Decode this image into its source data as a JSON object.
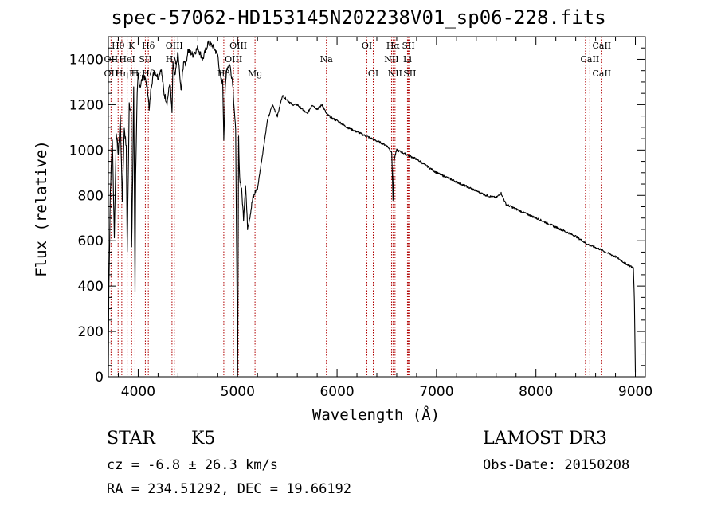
{
  "chart_data": {
    "type": "line",
    "title": "spec-57062-HD153145N202238V01_sp06-228.fits",
    "xlabel": "Wavelength (Å)",
    "ylabel": "Flux (relative)",
    "xlim": [
      3700,
      9100
    ],
    "ylim": [
      0,
      1500
    ],
    "xticks": [
      4000,
      5000,
      6000,
      7000,
      8000,
      9000
    ],
    "yticks": [
      0,
      200,
      400,
      600,
      800,
      1000,
      1200,
      1400
    ],
    "grid": false,
    "series": [
      {
        "name": "flux",
        "x": [
          3700,
          3705,
          3720,
          3740,
          3760,
          3780,
          3800,
          3820,
          3840,
          3860,
          3880,
          3890,
          3900,
          3910,
          3930,
          3934,
          3945,
          3955,
          3968,
          3975,
          3990,
          4000,
          4020,
          4050,
          4080,
          4102,
          4110,
          4130,
          4160,
          4200,
          4230,
          4260,
          4290,
          4320,
          4340,
          4350,
          4370,
          4400,
          4430,
          4460,
          4480,
          4500,
          4550,
          4600,
          4650,
          4700,
          4750,
          4800,
          4830,
          4850,
          4861,
          4875,
          4890,
          4920,
          4950,
          4980,
          5000,
          5010,
          5020,
          5040,
          5060,
          5080,
          5100,
          5120,
          5150,
          5180,
          5200,
          5230,
          5260,
          5300,
          5350,
          5400,
          5450,
          5500,
          5550,
          5600,
          5650,
          5700,
          5750,
          5800,
          5850,
          5893,
          5950,
          6000,
          6100,
          6200,
          6300,
          6400,
          6500,
          6550,
          6563,
          6575,
          6600,
          6700,
          6800,
          6900,
          7000,
          7100,
          7200,
          7300,
          7400,
          7500,
          7600,
          7650,
          7700,
          7800,
          7900,
          8000,
          8100,
          8200,
          8300,
          8400,
          8498,
          8542,
          8600,
          8662,
          8700,
          8800,
          8900,
          8980,
          8990,
          9000
        ],
        "values": [
          5,
          380,
          820,
          1050,
          620,
          1080,
          980,
          1150,
          780,
          1100,
          1010,
          550,
          880,
          1210,
          1160,
          560,
          880,
          1280,
          380,
          900,
          1240,
          1330,
          1280,
          1330,
          1300,
          1240,
          1170,
          1280,
          1350,
          1320,
          1360,
          1250,
          1210,
          1300,
          1160,
          1380,
          1320,
          1430,
          1260,
          1400,
          1380,
          1440,
          1420,
          1450,
          1400,
          1470,
          1460,
          1420,
          1310,
          1300,
          1050,
          1260,
          1360,
          1380,
          1300,
          1080,
          20,
          1050,
          880,
          820,
          700,
          850,
          660,
          700,
          780,
          820,
          830,
          920,
          1010,
          1130,
          1200,
          1150,
          1240,
          1220,
          1200,
          1200,
          1180,
          1160,
          1200,
          1180,
          1200,
          1160,
          1140,
          1130,
          1100,
          1080,
          1060,
          1040,
          1020,
          990,
          780,
          960,
          1000,
          980,
          960,
          930,
          900,
          880,
          860,
          840,
          820,
          800,
          790,
          810,
          760,
          740,
          720,
          700,
          680,
          660,
          640,
          620,
          590,
          580,
          570,
          560,
          550,
          530,
          500,
          480,
          330,
          20
        ]
      }
    ],
    "line_labels": [
      {
        "text": "Hθ",
        "x": 3798,
        "row": 1
      },
      {
        "text": "K",
        "x": 3934,
        "row": 1
      },
      {
        "text": "Hδ",
        "x": 4102,
        "row": 1
      },
      {
        "text": "OIII",
        "x": 4363,
        "row": 1
      },
      {
        "text": "OIII",
        "x": 5007,
        "row": 1
      },
      {
        "text": "OI",
        "x": 6300,
        "row": 1
      },
      {
        "text": "Hα",
        "x": 6563,
        "row": 1
      },
      {
        "text": "SII",
        "x": 6717,
        "row": 1
      },
      {
        "text": "CaII",
        "x": 8662,
        "row": 1
      },
      {
        "text": "OII",
        "x": 3727,
        "row": 2
      },
      {
        "text": "HeI",
        "x": 3889,
        "row": 2
      },
      {
        "text": "SII",
        "x": 4072,
        "row": 2
      },
      {
        "text": "Hγ",
        "x": 4340,
        "row": 2
      },
      {
        "text": "OIII",
        "x": 4959,
        "row": 2
      },
      {
        "text": "Na",
        "x": 5893,
        "row": 2
      },
      {
        "text": "NII",
        "x": 6548,
        "row": 2
      },
      {
        "text": "Li",
        "x": 6708,
        "row": 2
      },
      {
        "text": "CaII",
        "x": 8542,
        "row": 2
      },
      {
        "text": "OII",
        "x": 3727,
        "row": 3
      },
      {
        "text": "Hη",
        "x": 3835,
        "row": 3
      },
      {
        "text": "H",
        "x": 3968,
        "row": 3
      },
      {
        "text": "Hβ",
        "x": 4861,
        "row": 3
      },
      {
        "text": "Mg",
        "x": 5175,
        "row": 3
      },
      {
        "text": "OI",
        "x": 6364,
        "row": 3
      },
      {
        "text": "NII",
        "x": 6583,
        "row": 3
      },
      {
        "text": "SII",
        "x": 6731,
        "row": 3
      },
      {
        "text": "CaII",
        "x": 8662,
        "row": 3
      },
      {
        "text": "Hε",
        "x": 3970,
        "row": 3
      },
      {
        "text": "Hδ",
        "x": 4102,
        "row": 3
      }
    ],
    "line_marks": [
      3727,
      3798,
      3835,
      3889,
      3934,
      3968,
      4072,
      4102,
      4340,
      4363,
      4861,
      4959,
      5007,
      5175,
      5893,
      6300,
      6364,
      6548,
      6563,
      6583,
      6708,
      6717,
      6731,
      8498,
      8542,
      8662
    ]
  },
  "info": {
    "object_type": "STAR",
    "subclass": "K5",
    "survey": "LAMOST DR3",
    "cz": "cz = -6.8 ± 26.3 km/s",
    "obs_date": "Obs-Date: 20150208",
    "coords": "RA = 234.51292, DEC =  19.66192"
  },
  "colors": {
    "axis": "#000000",
    "line": "#000000",
    "marker": "#b00000"
  }
}
